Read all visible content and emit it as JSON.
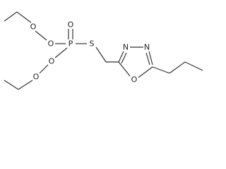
{
  "atoms": [
    {
      "label": "O"
    },
    {
      "label": "O"
    },
    {
      "label": "P"
    },
    {
      "label": "O"
    },
    {
      "label": "O"
    },
    {
      "label": "O"
    },
    {
      "label": "S"
    },
    {
      "label": "N"
    },
    {
      "label": "N"
    },
    {
      "label": "O"
    }
  ]
}
